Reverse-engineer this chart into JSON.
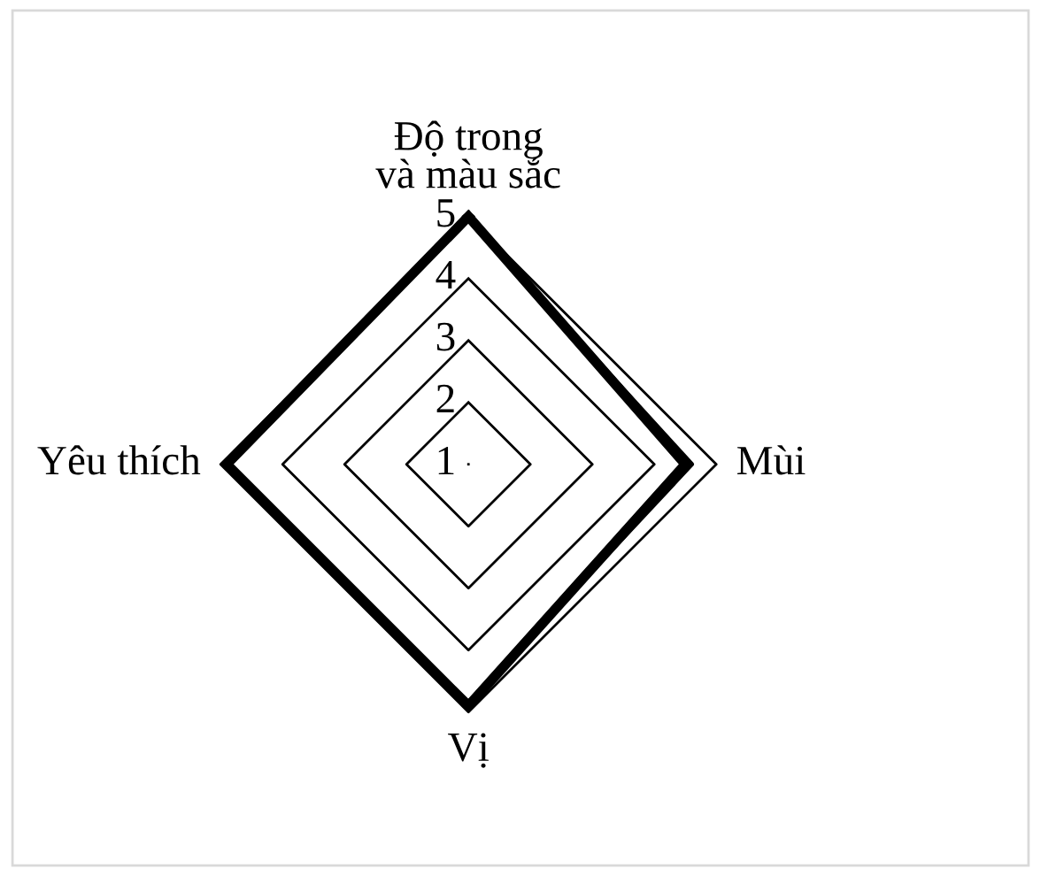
{
  "chart_data": {
    "type": "radar",
    "categories": [
      "Độ trong\nvà màu sắc",
      "Mùi",
      "Vị",
      "Yêu thích"
    ],
    "series": [
      {
        "color": "#000000",
        "values": [
          5,
          4.5,
          4.9,
          4.9
        ]
      },
      {
        "color": "#000000",
        "values": [
          4.95,
          4.6,
          4.85,
          4.95
        ]
      }
    ],
    "ylim": [
      1,
      5
    ],
    "yticks": [
      1,
      2,
      3,
      4,
      5
    ],
    "grid": true,
    "legend": false
  }
}
